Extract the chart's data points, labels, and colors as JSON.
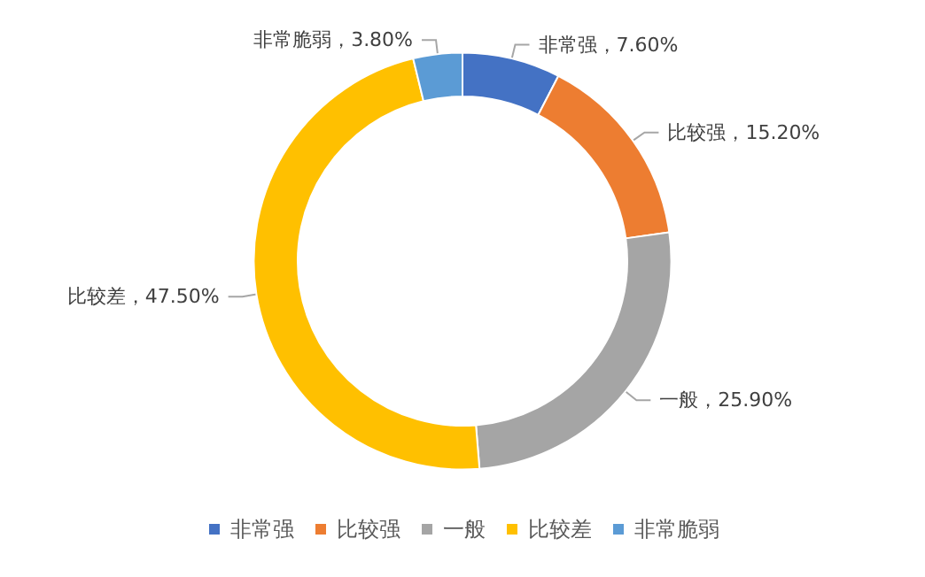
{
  "chart_data": {
    "type": "donut",
    "categories": [
      "非常强",
      "比较强",
      "一般",
      "比较差",
      "非常脆弱"
    ],
    "values": [
      7.6,
      15.2,
      25.9,
      47.5,
      3.8
    ],
    "colors": [
      "#4472c4",
      "#ed7d31",
      "#a5a5a5",
      "#ffc000",
      "#5b9bd5"
    ],
    "value_labels": [
      "非常强，7.60%",
      "比较强，15.20%",
      "一般，25.90%",
      "比较差，47.50%",
      "非常脆弱，3.80%"
    ],
    "legend": "bottom"
  }
}
